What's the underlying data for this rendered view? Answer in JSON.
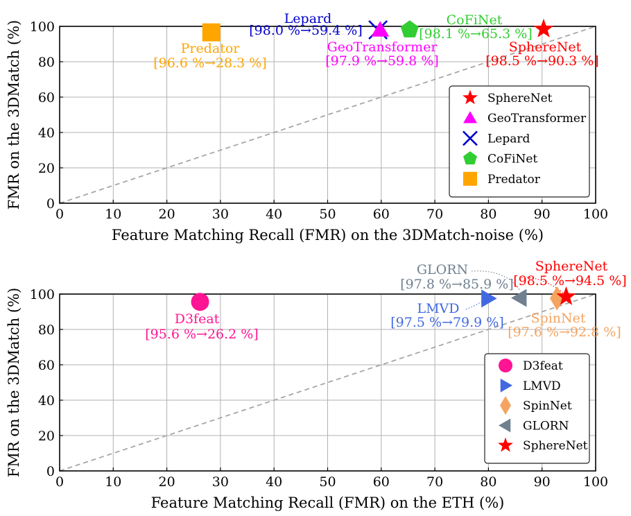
{
  "chart_data": [
    {
      "type": "scatter",
      "xlabel": "Feature Matching Recall (FMR) on the 3DMatch-noise (%)",
      "ylabel": "FMR on the 3DMatch (%)",
      "xlim": [
        0,
        100
      ],
      "ylim": [
        0,
        100
      ],
      "xticks": [
        "0",
        "10",
        "20",
        "30",
        "40",
        "50",
        "60",
        "70",
        "80",
        "90",
        "100"
      ],
      "yticks": [
        "0",
        "20",
        "40",
        "60",
        "80",
        "100"
      ],
      "grid": true,
      "diagonal": "y = x (dashed gray)",
      "legend_position": "lower-right",
      "points": [
        {
          "name": "Predator",
          "x": 28.3,
          "y": 96.6,
          "label": "[96.6 %→28.3 %]",
          "color": "#FFA500",
          "marker": "square"
        },
        {
          "name": "Lepard",
          "x": 59.4,
          "y": 98.0,
          "label": "[98.0 %→59.4 %]",
          "color": "#0000CD",
          "marker": "x"
        },
        {
          "name": "GeoTransformer",
          "x": 59.8,
          "y": 97.9,
          "label": "[97.9 %→59.8 %]",
          "color": "#FF00FF",
          "marker": "triangle-up"
        },
        {
          "name": "CoFiNet",
          "x": 65.3,
          "y": 98.1,
          "label": "[98.1 %→65.3 %]",
          "color": "#32CD32",
          "marker": "pentagon"
        },
        {
          "name": "SphereNet",
          "x": 90.3,
          "y": 98.5,
          "label": "[98.5 %→90.3 %]",
          "color": "#FF0000",
          "marker": "star"
        }
      ],
      "legend": [
        "SphereNet",
        "GeoTransformer",
        "Lepard",
        "CoFiNet",
        "Predator"
      ]
    },
    {
      "type": "scatter",
      "xlabel": "Feature Matching Recall (FMR) on the ETH (%)",
      "ylabel": "FMR on the 3DMatch (%)",
      "xlim": [
        0,
        100
      ],
      "ylim": [
        0,
        100
      ],
      "xticks": [
        "0",
        "10",
        "20",
        "30",
        "40",
        "50",
        "60",
        "70",
        "80",
        "90",
        "100"
      ],
      "yticks": [
        "0",
        "20",
        "40",
        "60",
        "80",
        "100"
      ],
      "grid": true,
      "diagonal": "y = x (dashed gray)",
      "legend_position": "lower-right",
      "points": [
        {
          "name": "D3feat",
          "x": 26.2,
          "y": 95.6,
          "label": "[95.6 %→26.2 %]",
          "color": "#FF1493",
          "marker": "circle"
        },
        {
          "name": "LMVD",
          "x": 79.9,
          "y": 97.5,
          "label": "[97.5 %→79.9 %]",
          "color": "#4169E1",
          "marker": "triangle-right"
        },
        {
          "name": "GLORN",
          "x": 85.9,
          "y": 97.8,
          "label": "[97.8 %→85.9 %]",
          "color": "#708090",
          "marker": "triangle-left"
        },
        {
          "name": "SpinNet",
          "x": 92.8,
          "y": 97.6,
          "label": "[97.6 %→92.8 %]",
          "color": "#F4A460",
          "marker": "diamond"
        },
        {
          "name": "SphereNet",
          "x": 94.5,
          "y": 98.5,
          "label": "[98.5 %→94.5 %]",
          "color": "#FF0000",
          "marker": "star"
        }
      ],
      "legend": [
        "D3feat",
        "LMVD",
        "SpinNet",
        "GLORN",
        "SphereNet"
      ]
    }
  ]
}
